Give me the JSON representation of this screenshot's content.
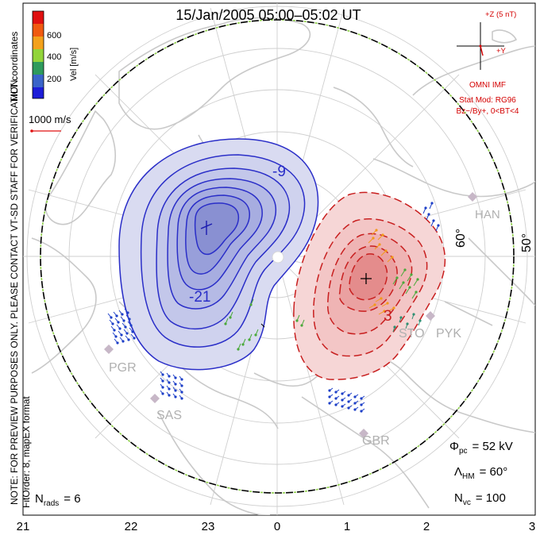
{
  "title": "15/Jan/2005 05:00–05:02 UT",
  "colorbar": {
    "ticks": [
      "600",
      "400",
      "200"
    ],
    "label": "Vel [m/s]",
    "colors": [
      "#e01010",
      "#f05a10",
      "#f3a11c",
      "#92d43a",
      "#2e9a5c",
      "#3a64c9",
      "#1d1dd8"
    ]
  },
  "coord_label": "MLT coordinates",
  "vector_scale": "1000 m/s",
  "preview_note": "NOTE: FOR PREVIEW PURPOSES ONLY. PLEASE CONTACT VT-SD STAFF FOR VERIFICATION.",
  "fit_order": "FitOrder: 8, mapEX format",
  "imf": {
    "plus_z": "+Z (5 nT)",
    "plus_y": "+Y",
    "source": "OMNI IMF",
    "model": "Stat Mod: RG96",
    "condition": "Bz−/By+, 0<BT<4"
  },
  "radars": [
    "HAN",
    "PYK",
    "STO",
    "PGR",
    "SAS",
    "GBR"
  ],
  "lat_labels": [
    "60°",
    "50°"
  ],
  "contour_labels": [
    "-9",
    "-21",
    "3"
  ],
  "stats": {
    "nrads": {
      "sym": "N",
      "sub": "rads",
      "value": "= 6"
    },
    "phi": {
      "sym": "Φ",
      "sub": "pc",
      "value": "= 52 kV"
    },
    "lambda": {
      "sym": "Λ",
      "sub": "HM",
      "value": "= 60°"
    },
    "nvc": {
      "sym": "N",
      "sub": "vc",
      "value": "= 100"
    }
  },
  "mlt_ticks": [
    "21",
    "22",
    "23",
    "0",
    "1",
    "2",
    "3"
  ],
  "colors": {
    "dusk_cell": "#2a2ec8",
    "dawn_cell": "#c81f1f",
    "hm_boundary": "#000000",
    "hm_dashes": "#8fd04a"
  }
}
